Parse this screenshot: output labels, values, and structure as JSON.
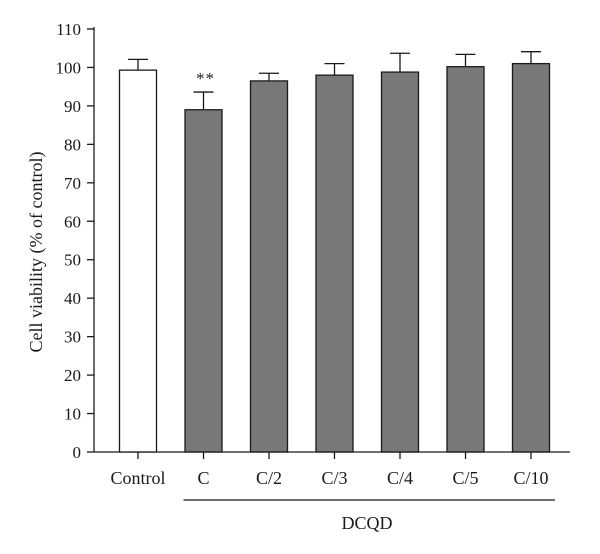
{
  "chart_data": {
    "type": "bar",
    "categories": [
      "Control",
      "C",
      "C/2",
      "C/3",
      "C/4",
      "C/5",
      "C/10"
    ],
    "values": [
      99.3,
      89.0,
      96.5,
      98.0,
      98.8,
      100.2,
      101.0
    ],
    "errors": [
      2.8,
      4.6,
      2.0,
      3.0,
      4.9,
      3.2,
      3.1
    ],
    "annotations": [
      "",
      "**",
      "",
      "",
      "",
      "",
      ""
    ],
    "bar_colors": [
      "#ffffff",
      "#787878",
      "#787878",
      "#787878",
      "#787878",
      "#787878",
      "#787878"
    ],
    "group_label": "DCQD",
    "group_span": [
      "C",
      "C/10"
    ],
    "xlabel": "",
    "ylabel": "Cell viability (% of control)",
    "ylim": [
      0,
      110
    ],
    "yticks": [
      0,
      10,
      20,
      30,
      40,
      50,
      60,
      70,
      80,
      90,
      100,
      110
    ],
    "grid": false
  }
}
